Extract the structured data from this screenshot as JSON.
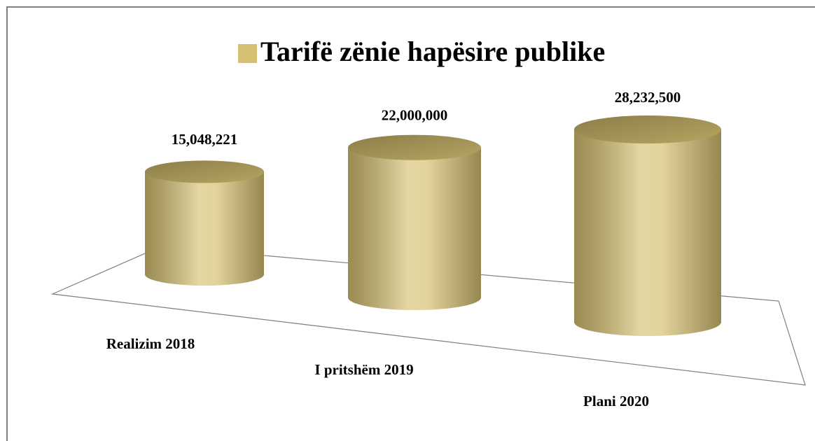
{
  "chart_data": {
    "type": "bar",
    "title": "Tarifë zënie hapësire publike",
    "categories": [
      "Realizim 2018",
      "I pritshëm 2019",
      "Plani 2020"
    ],
    "series": [
      {
        "name": "Tarifë zënie hapësire publike",
        "color": "#d6c172",
        "values": [
          15048221,
          22000000,
          28232500
        ],
        "value_labels": [
          "15,048,221",
          "22,000,000",
          "28,232,500"
        ]
      }
    ]
  }
}
